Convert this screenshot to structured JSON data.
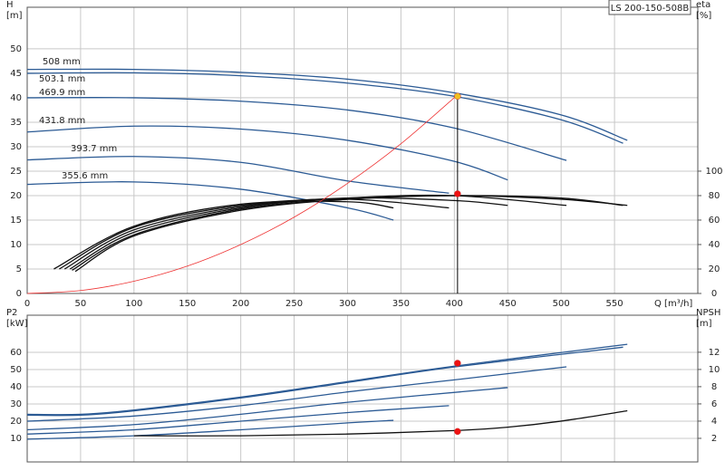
{
  "chart_data": [
    {
      "type": "line",
      "title": "LS 200-150-508B",
      "ylabel": [
        "H",
        "[m]"
      ],
      "y2label": [
        "eta",
        "[%]"
      ],
      "xlabel": "Q [m³/h]",
      "xlim": [
        0,
        628
      ],
      "xticks": [
        0,
        50,
        100,
        150,
        200,
        250,
        300,
        350,
        400,
        450,
        500,
        550
      ],
      "ylim": [
        0,
        58.5
      ],
      "yticks": [
        0,
        5,
        10,
        15,
        20,
        25,
        30,
        35,
        40,
        45,
        50
      ],
      "y2lim": [
        0,
        234
      ],
      "y2ticks": [
        0,
        20,
        40,
        60,
        80,
        100
      ],
      "grid": true,
      "series": [
        {
          "name": "508 mm",
          "color": "#2b5a94",
          "x": [
            0,
            100,
            200,
            300,
            400,
            500,
            562
          ],
          "values": [
            45.8,
            45.8,
            45.2,
            43.8,
            41,
            36.5,
            31.3
          ]
        },
        {
          "name": "503.1 mm",
          "color": "#2b5a94",
          "x": [
            0,
            100,
            200,
            300,
            400,
            500,
            558
          ],
          "values": [
            45,
            45.1,
            44.5,
            43,
            40.3,
            35.5,
            30.7
          ]
        },
        {
          "name": "469.9 mm",
          "color": "#2b5a94",
          "x": [
            0,
            100,
            200,
            300,
            400,
            505
          ],
          "values": [
            40,
            40,
            39.3,
            37.5,
            33.8,
            27.2
          ]
        },
        {
          "name": "431.8 mm",
          "color": "#2b5a94",
          "x": [
            0,
            100,
            200,
            300,
            400,
            450
          ],
          "values": [
            33,
            34.2,
            33.6,
            31.3,
            27,
            23.2
          ]
        },
        {
          "name": "393.7 mm",
          "color": "#2b5a94",
          "x": [
            0,
            100,
            200,
            300,
            395
          ],
          "values": [
            27.3,
            28,
            26.8,
            23,
            20.5
          ]
        },
        {
          "name": "355.6 mm",
          "color": "#2b5a94",
          "x": [
            0,
            100,
            200,
            300,
            343
          ],
          "values": [
            22.3,
            22.8,
            21.3,
            17.5,
            15
          ]
        },
        {
          "color": "#111111",
          "axis": "y2",
          "x": [
            45,
            100,
            200,
            300,
            400,
            500,
            562
          ],
          "values": [
            18,
            47,
            68,
            77,
            80,
            77,
            72
          ]
        },
        {
          "color": "#111111",
          "axis": "y2",
          "x": [
            42,
            100,
            200,
            300,
            400,
            500,
            558
          ],
          "values": [
            19,
            48,
            69,
            77,
            80,
            78,
            72
          ]
        },
        {
          "color": "#111111",
          "axis": "y2",
          "x": [
            40,
            100,
            200,
            300,
            400,
            505
          ],
          "values": [
            20,
            50,
            70,
            78,
            80,
            72
          ]
        },
        {
          "color": "#111111",
          "axis": "y2",
          "x": [
            35,
            100,
            200,
            300,
            400,
            450
          ],
          "values": [
            20,
            52,
            71,
            78,
            76,
            72
          ]
        },
        {
          "color": "#111111",
          "axis": "y2",
          "x": [
            30,
            100,
            200,
            300,
            395
          ],
          "values": [
            20,
            54,
            72,
            77,
            70
          ]
        },
        {
          "color": "#111111",
          "axis": "y2",
          "x": [
            25,
            100,
            200,
            300,
            343
          ],
          "values": [
            20,
            55,
            73,
            75,
            70
          ]
        },
        {
          "color": "#ee3333",
          "x": [
            0,
            50,
            100,
            150,
            200,
            250,
            300,
            350,
            403
          ],
          "values": [
            0,
            0.6,
            2.5,
            5.6,
            10,
            15.6,
            22.5,
            30.6,
            40.6
          ]
        },
        {
          "color": "#f0c020",
          "marker": true,
          "drop_line": true,
          "x": [
            403
          ],
          "values": [
            40.3
          ]
        },
        {
          "color": "#ee1111",
          "marker": true,
          "axis": "y2",
          "x": [
            403
          ],
          "values": [
            81.5
          ]
        }
      ]
    },
    {
      "type": "line",
      "ylabel": [
        "P2",
        "[kW]"
      ],
      "y2label": [
        "NPSH",
        "[m]"
      ],
      "xlim": [
        0,
        628
      ],
      "ylim": [
        -3.7,
        81.6
      ],
      "yticks": [
        10,
        20,
        30,
        40,
        50,
        60
      ],
      "y2lim": [
        -0.74,
        16.3
      ],
      "y2ticks": [
        2,
        4,
        6,
        8,
        10,
        12
      ],
      "grid": true,
      "series": [
        {
          "color": "#2b5a94",
          "x": [
            0,
            50,
            100,
            200,
            300,
            400,
            562
          ],
          "values": [
            24,
            24,
            26.5,
            34,
            43,
            52,
            64.7
          ]
        },
        {
          "color": "#2b5a94",
          "x": [
            0,
            50,
            100,
            200,
            300,
            400,
            558
          ],
          "values": [
            23.5,
            23.5,
            26,
            33.5,
            42.5,
            51.5,
            63
          ]
        },
        {
          "color": "#2b5a94",
          "x": [
            0,
            100,
            200,
            300,
            400,
            505
          ],
          "values": [
            20,
            23,
            29,
            37,
            44,
            51.6
          ]
        },
        {
          "color": "#2b5a94",
          "x": [
            0,
            100,
            200,
            300,
            450
          ],
          "values": [
            15,
            18,
            24,
            31,
            39.5
          ]
        },
        {
          "color": "#2b5a94",
          "x": [
            0,
            100,
            200,
            300,
            395
          ],
          "values": [
            12.5,
            15,
            20,
            25,
            29
          ]
        },
        {
          "color": "#2b5a94",
          "x": [
            0,
            100,
            200,
            300,
            343
          ],
          "values": [
            9.5,
            11.5,
            15,
            19,
            20.5
          ]
        },
        {
          "color": "#111111",
          "axis": "y2",
          "x": [
            100,
            200,
            300,
            400,
            450,
            500,
            562
          ],
          "values": [
            2.3,
            2.3,
            2.5,
            2.9,
            3.3,
            4,
            5.2
          ]
        },
        {
          "color": "#ee1111",
          "marker": true,
          "x": [
            403
          ],
          "values": [
            53.7
          ]
        },
        {
          "color": "#ee1111",
          "marker": true,
          "axis": "y2",
          "x": [
            403
          ],
          "values": [
            2.8
          ]
        }
      ]
    }
  ]
}
